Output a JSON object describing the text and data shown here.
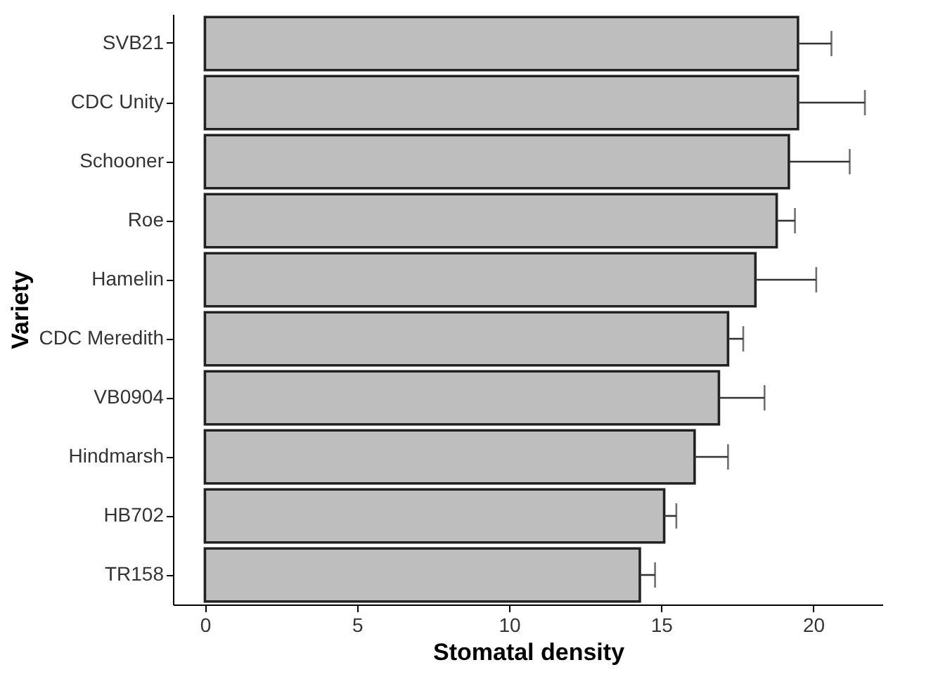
{
  "chart_data": {
    "type": "bar",
    "orientation": "horizontal",
    "xlabel": "Stomatal density",
    "ylabel": "Variety",
    "categories": [
      "SVB21",
      "CDC Unity",
      "Schooner",
      "Roe",
      "Hamelin",
      "CDC Meredith",
      "VB0904",
      "Hindmarsh",
      "HB702",
      "TR158"
    ],
    "values": [
      19.5,
      19.5,
      19.2,
      18.8,
      18.1,
      17.2,
      16.9,
      16.1,
      15.1,
      14.3
    ],
    "errors": [
      [
        19.5,
        20.6
      ],
      [
        19.5,
        21.7
      ],
      [
        19.2,
        21.2
      ],
      [
        18.8,
        19.4
      ],
      [
        18.1,
        20.1
      ],
      [
        17.2,
        17.7
      ],
      [
        16.9,
        18.4
      ],
      [
        16.1,
        17.2
      ],
      [
        15.1,
        15.5
      ],
      [
        14.3,
        14.8
      ]
    ],
    "color": "#bebebe",
    "xlim": [
      -1.05,
      22.3
    ],
    "xticks": [
      0,
      5,
      10,
      15,
      20
    ],
    "grid": false
  }
}
